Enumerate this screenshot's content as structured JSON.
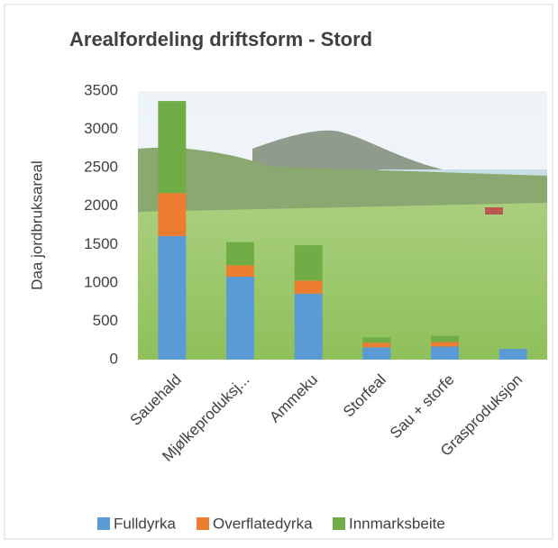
{
  "chart_data": {
    "type": "stacked-bar",
    "title": "Arealfordeling driftsform - Stord",
    "y_label": "Daa jordbruksareal",
    "categories": [
      "Sauehald",
      "Mjølkeproduksj...",
      "Ammeku",
      "Storfeal",
      "Sau + storfe",
      "Grasproduksjon"
    ],
    "series": [
      {
        "name": "Fulldyrka",
        "color": "#5b9bd5",
        "values": [
          1610,
          1080,
          860,
          160,
          170,
          140
        ]
      },
      {
        "name": "Overflatedyrka",
        "color": "#ed7d31",
        "values": [
          560,
          150,
          170,
          60,
          60,
          0
        ]
      },
      {
        "name": "Innmarksbeite",
        "color": "#70ad47",
        "values": [
          1200,
          300,
          460,
          70,
          80,
          0
        ]
      }
    ],
    "ylim": [
      0,
      3500
    ],
    "yticks": [
      0,
      500,
      1000,
      1500,
      2000,
      2500,
      3000,
      3500
    ],
    "grid": false,
    "legend": "bottom"
  }
}
